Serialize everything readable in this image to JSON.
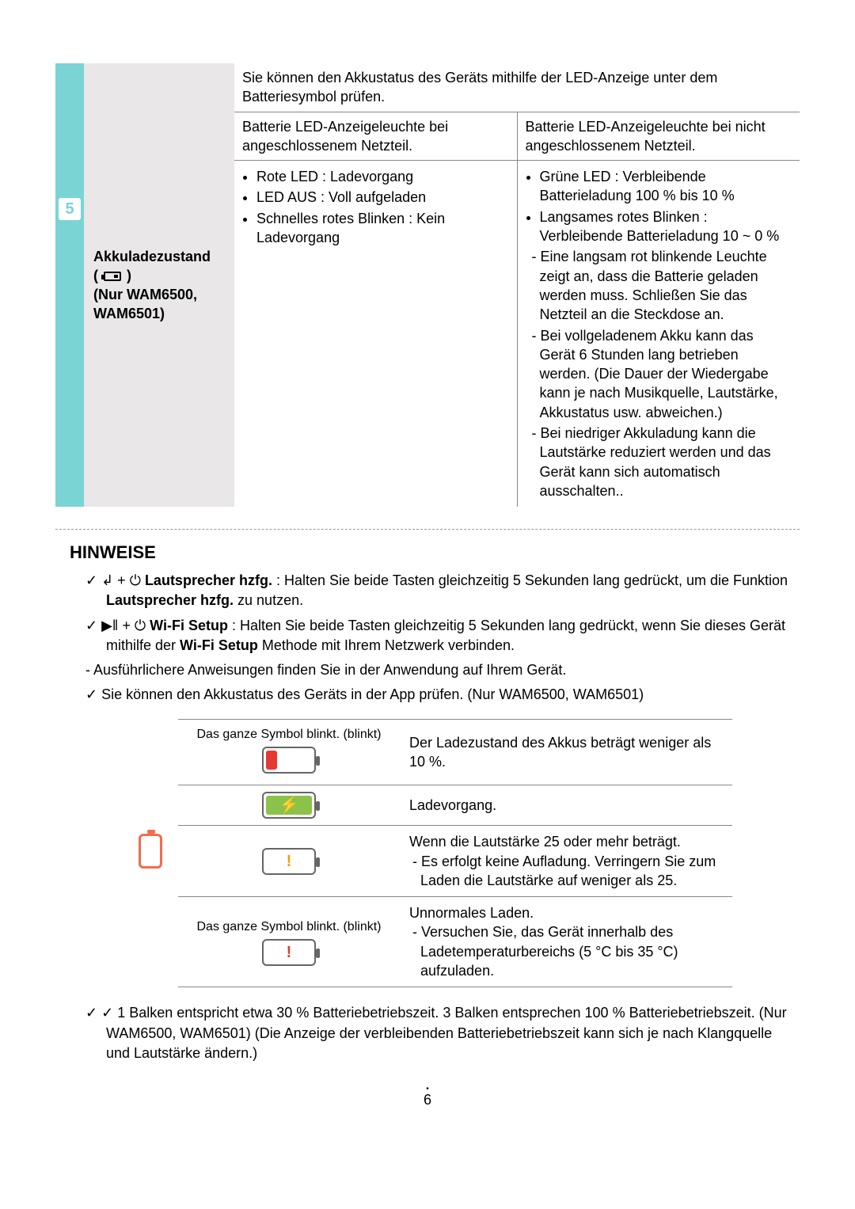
{
  "section5": {
    "number": "5",
    "label_line1": "Akkuladezustand",
    "label_line2_prefix": "( ",
    "label_line2_suffix": " )",
    "label_line3": "(Nur WAM6500,",
    "label_line4": "WAM6501)",
    "top_note": "Sie können den Akkustatus des Geräts mithilfe der LED-Anzeige unter dem Batteriesymbol prüfen.",
    "header_left": "Batterie LED-Anzeigeleuchte bei angeschlossenem Netzteil.",
    "header_right": "Batterie LED-Anzeigeleuchte bei nicht angeschlossenem Netzteil.",
    "left_bullets": [
      "Rote LED : Ladevorgang",
      "LED AUS : Voll aufgeladen",
      "Schnelles rotes Blinken : Kein Ladevorgang"
    ],
    "right_bullets": [
      "Grüne LED : Verbleibende Batterieladung 100 % bis 10 %",
      "Langsames rotes Blinken : Verbleibende Batterieladung 10 ~ 0 %"
    ],
    "right_dashes": [
      "Eine langsam rot blinkende Leuchte zeigt an, dass die Batterie geladen werden muss. Schließen Sie das Netzteil an die Steckdose an.",
      "Bei vollgeladenem Akku kann das Gerät 6 Stunden lang betrieben werden. (Die Dauer der Wiedergabe kann je nach Musikquelle, Lautstärke, Akkustatus usw. abweichen.)",
      "Bei niedriger Akkuladung kann die Lautstärke reduziert werden und das Gerät kann sich automatisch ausschalten.."
    ]
  },
  "hinweise": {
    "title": "HINWEISE",
    "items": [
      {
        "marker": "check",
        "html": "↲ + ⏻ <b>Lautsprecher hzfg.</b> : Halten Sie beide Tasten gleichzeitig 5 Sekunden lang gedrückt, um die Funktion <b>Lautsprecher hzfg.</b> zu nutzen."
      },
      {
        "marker": "check",
        "html": "▶ǁ + ⏻ <b>Wi-Fi Setup</b> : Halten Sie beide Tasten gleichzeitig 5 Sekunden lang gedrückt, wenn Sie dieses Gerät mithilfe der <b>Wi-Fi Setup</b> Methode mit Ihrem Netzwerk verbinden."
      },
      {
        "marker": "dash",
        "html": "Ausführlichere Anweisungen finden Sie in der Anwendung auf Ihrem Gerät."
      },
      {
        "marker": "check",
        "html": "Sie können den Akkustatus des Geräts in der App prüfen. (Nur WAM6500, WAM6501)"
      }
    ]
  },
  "batt_table": {
    "caption_blinkt": "Das ganze Symbol blinkt. (blinkt)",
    "rows": [
      {
        "state": "red_low",
        "caption": true,
        "desc": "Der Ladezustand des Akkus beträgt weniger als 10 %."
      },
      {
        "state": "bolt",
        "caption": false,
        "desc": "Ladevorgang."
      },
      {
        "state": "excl_orange",
        "caption": false,
        "desc": "Wenn die Lautstärke 25 oder mehr beträgt.\n- Es erfolgt keine Aufladung. Verringern Sie zum Laden die Lautstärke auf weniger als 25."
      },
      {
        "state": "excl_red",
        "caption": true,
        "desc": "Unnormales Laden.\n- Versuchen Sie, das Gerät innerhalb des Ladetemperaturbereichs (5 °C bis 35 °C) aufzuladen."
      }
    ]
  },
  "footnote": "1 Balken entspricht etwa 30 % Batteriebetriebszeit. 3 Balken entsprechen 100 % Batteriebetriebszeit. (Nur WAM6500, WAM6501) (Die Anzeige der verbleibenden Batteriebetriebszeit kann sich je nach Klangquelle und Lautstärke ändern.)",
  "page_number": "6"
}
